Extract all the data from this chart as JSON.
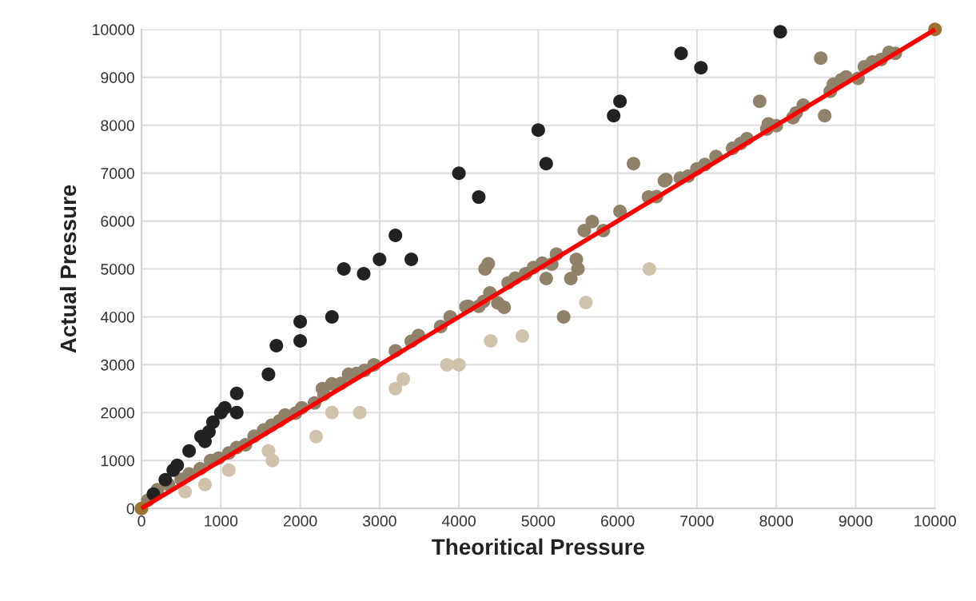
{
  "chart_data": {
    "type": "scatter",
    "xlabel": "Theoritical Pressure",
    "ylabel": "Actual Pressure",
    "xlim": [
      0,
      10000
    ],
    "ylim": [
      0,
      10000
    ],
    "xticks": [
      0,
      1000,
      2000,
      3000,
      4000,
      5000,
      6000,
      7000,
      8000,
      9000,
      10000
    ],
    "yticks": [
      0,
      1000,
      2000,
      3000,
      4000,
      5000,
      6000,
      7000,
      8000,
      9000,
      10000
    ],
    "grid": true,
    "marker": "circle",
    "series": [
      {
        "color": "#8f816a",
        "x": [
          80,
          200,
          340,
          500,
          600,
          740,
          870,
          970,
          1100,
          1200,
          1310,
          1420,
          1540,
          1640,
          1740,
          1810,
          1940,
          2020,
          2180,
          2280,
          2300,
          2400,
          2510,
          2610,
          2710,
          2810,
          2930,
          3200,
          3400,
          3490,
          3770,
          3890,
          4090,
          4120,
          4250,
          4310,
          4330,
          4370,
          4390,
          4490,
          4570,
          4620,
          4710,
          4840,
          4940,
          5050,
          5100,
          5170,
          5230,
          5320,
          5410,
          5480,
          5500,
          5580,
          5680,
          5820,
          6030,
          6200,
          6390,
          6490,
          6590,
          6610,
          6790,
          6890,
          7000,
          7100,
          7240,
          7450,
          7550,
          7630,
          7790,
          7880,
          7900,
          8000,
          8210,
          8250,
          8340,
          8560,
          8610,
          8680,
          8720,
          8820,
          8880,
          9030,
          9110,
          9210,
          9320,
          9420,
          9500
        ],
        "values": [
          170,
          390,
          500,
          610,
          720,
          830,
          1000,
          1050,
          1160,
          1270,
          1330,
          1510,
          1640,
          1740,
          1830,
          1950,
          1990,
          2100,
          2200,
          2500,
          2380,
          2600,
          2610,
          2800,
          2820,
          2880,
          3000,
          3290,
          3490,
          3610,
          3800,
          4000,
          4210,
          4220,
          4220,
          4320,
          5000,
          5110,
          4500,
          4290,
          4200,
          4710,
          4810,
          4900,
          5030,
          5120,
          4800,
          5100,
          5310,
          4000,
          4800,
          5200,
          5000,
          5800,
          5990,
          5800,
          6200,
          7200,
          6500,
          6510,
          6840,
          6870,
          6900,
          6940,
          7090,
          7180,
          7350,
          7520,
          7620,
          7720,
          8500,
          7920,
          8030,
          7990,
          8160,
          8260,
          8420,
          9400,
          8200,
          8710,
          8860,
          8950,
          9010,
          8980,
          9220,
          9320,
          9370,
          9520,
          9500
        ]
      },
      {
        "color": "#cfc3ad",
        "x": [
          550,
          800,
          1100,
          1600,
          1650,
          2200,
          2400,
          2750,
          3200,
          3300,
          3850,
          4000,
          4400,
          4800,
          5600,
          6400
        ],
        "values": [
          350,
          500,
          800,
          1200,
          1000,
          1500,
          2000,
          2000,
          2500,
          2700,
          3000,
          3000,
          3500,
          3600,
          4300,
          5000
        ]
      },
      {
        "color": "#222222",
        "x": [
          150,
          300,
          400,
          450,
          600,
          750,
          800,
          850,
          900,
          1000,
          1050,
          1200,
          1200,
          1600,
          1700,
          2000,
          2000,
          2400,
          2550,
          2800,
          3000,
          3200,
          3400,
          4000,
          4250,
          5000,
          5100,
          5950,
          6030,
          6800,
          7050,
          8050
        ],
        "values": [
          300,
          600,
          800,
          900,
          1200,
          1500,
          1400,
          1600,
          1800,
          2000,
          2100,
          2400,
          2000,
          2800,
          3400,
          3500,
          3900,
          4000,
          5000,
          4900,
          5200,
          5700,
          5200,
          7000,
          6500,
          7900,
          7200,
          8200,
          8500,
          9500,
          9200,
          9950
        ]
      },
      {
        "color": "#9a7330",
        "x": [
          0,
          10000
        ],
        "values": [
          0,
          10000
        ]
      },
      {
        "type": "line",
        "color": "#ff0000",
        "x": [
          0,
          10000
        ],
        "values": [
          0,
          10000
        ],
        "marker": "none",
        "line_style": "solid"
      }
    ]
  }
}
